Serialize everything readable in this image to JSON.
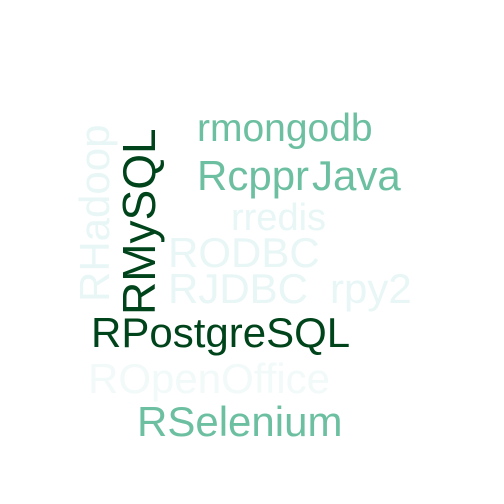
{
  "colors": {
    "background": "#ffffff",
    "very_light": "#e8f6f6",
    "light": "#d3eeee",
    "medium": "#6cc0a1",
    "dark": "#00441b",
    "darkest": "#00341a"
  },
  "words": [
    {
      "text": "RPostgreSQL",
      "color": "#00441b"
    },
    {
      "text": "RMySQL",
      "color": "#00441b"
    },
    {
      "text": "rmongodb",
      "color": "#6cc0a1"
    },
    {
      "text": "Rcppr",
      "color": "#6cc0a1"
    },
    {
      "text": "Java",
      "color": "#6cc0a1"
    },
    {
      "text": "RSelenium",
      "color": "#6cc0a1"
    },
    {
      "text": "RHadoop",
      "color": "#e8f6f6"
    },
    {
      "text": "rredis",
      "color": "#e8f6f6"
    },
    {
      "text": "RODBC",
      "color": "#e8f6f6"
    },
    {
      "text": "RJDBC",
      "color": "#e8f6f6"
    },
    {
      "text": "rpy2",
      "color": "#e8f6f6"
    },
    {
      "text": "ROpenOffice",
      "color": "#f1f9f9"
    }
  ]
}
